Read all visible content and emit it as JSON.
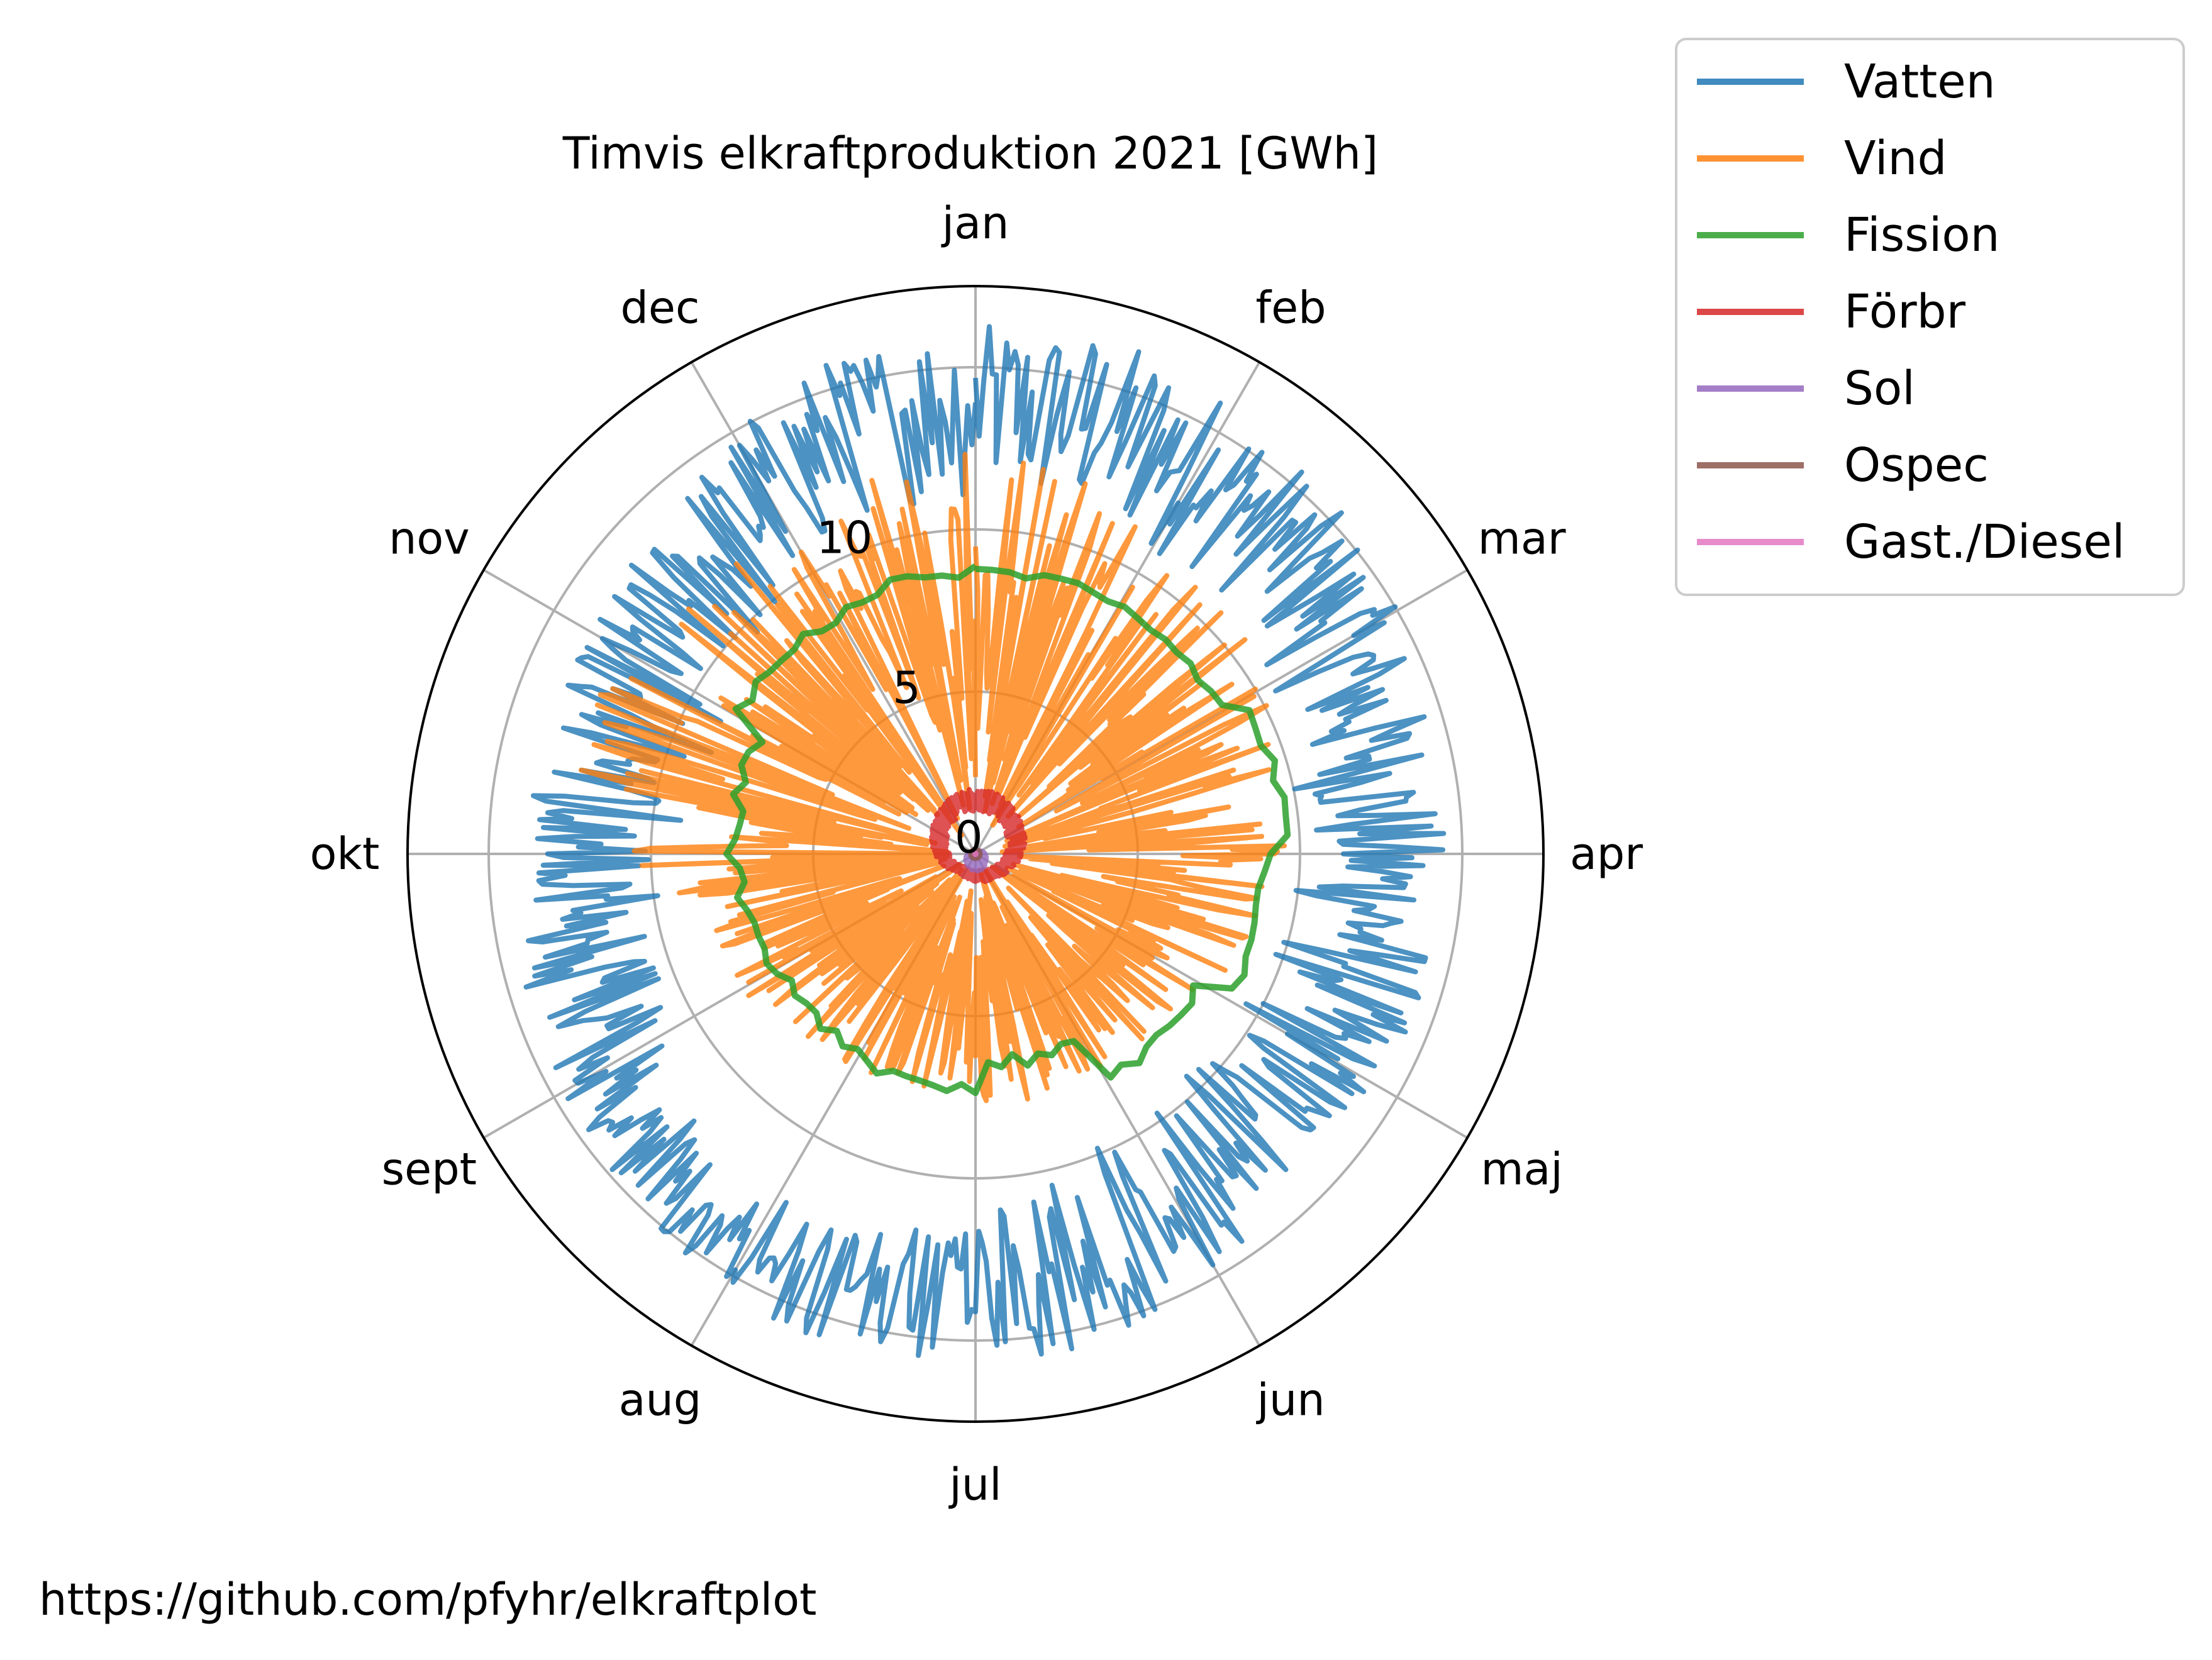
{
  "chart_data": {
    "type": "polar-line",
    "title": "Timvis elkraftproduktion 2021 [GWh]",
    "theta_labels": [
      "jan",
      "feb",
      "mar",
      "apr",
      "maj",
      "jun",
      "jul",
      "aug",
      "sept",
      "okt",
      "nov",
      "dec"
    ],
    "r_ticks": [
      0,
      5,
      10
    ],
    "r_range": [
      0,
      17.5
    ],
    "grid": true,
    "direction": "clockwise",
    "zero_location": "top",
    "legend_placement": "outside top-right",
    "series": [
      {
        "name": "Vatten",
        "color": "#1f77b4",
        "monthly_range": [
          [
            10.5,
            16.5
          ],
          [
            11,
            15.5
          ],
          [
            10,
            14.5
          ],
          [
            9.5,
            14.5
          ],
          [
            9,
            14
          ],
          [
            10,
            15.5
          ],
          [
            12,
            16
          ],
          [
            12,
            15
          ],
          [
            10,
            14.5
          ],
          [
            8.5,
            13.5
          ],
          [
            9,
            14
          ],
          [
            11,
            16
          ]
        ]
      },
      {
        "name": "Vind",
        "color": "#ff7f0e",
        "monthly_range": [
          [
            1,
            13
          ],
          [
            1,
            11
          ],
          [
            0.5,
            10
          ],
          [
            0.5,
            9
          ],
          [
            0.5,
            8
          ],
          [
            0.5,
            8
          ],
          [
            0.5,
            7.5
          ],
          [
            0.5,
            8
          ],
          [
            0.5,
            9
          ],
          [
            0.5,
            13
          ],
          [
            0.5,
            11.5
          ],
          [
            1,
            12
          ]
        ]
      },
      {
        "name": "Fission",
        "color": "#2ca02c",
        "monthly_values": [
          8.7,
          8.8,
          9.5,
          9.0,
          8.0,
          6.5,
          7.3,
          7.0,
          7.3,
          7.5,
          8.5,
          8.7
        ]
      },
      {
        "name": "Förbr",
        "color": "#d62728",
        "monthly_range": [
          [
            1.3,
            2
          ],
          [
            1.2,
            1.8
          ],
          [
            1,
            1.6
          ],
          [
            0.8,
            1.3
          ],
          [
            0.6,
            1
          ],
          [
            0.5,
            0.9
          ],
          [
            0.5,
            0.8
          ],
          [
            0.5,
            0.8
          ],
          [
            0.7,
            1.1
          ],
          [
            0.9,
            1.4
          ],
          [
            1.1,
            1.7
          ],
          [
            1.3,
            2
          ]
        ]
      },
      {
        "name": "Sol",
        "color": "#9467bd",
        "monthly_range": [
          [
            0,
            0.05
          ],
          [
            0,
            0.1
          ],
          [
            0,
            0.25
          ],
          [
            0,
            0.35
          ],
          [
            0,
            0.45
          ],
          [
            0,
            0.55
          ],
          [
            0,
            0.5
          ],
          [
            0,
            0.4
          ],
          [
            0,
            0.3
          ],
          [
            0,
            0.15
          ],
          [
            0,
            0.05
          ],
          [
            0,
            0.03
          ]
        ]
      },
      {
        "name": "Ospec",
        "color": "#8c564b",
        "monthly_range": [
          [
            0.05,
            0.15
          ],
          [
            0.05,
            0.15
          ],
          [
            0.05,
            0.15
          ],
          [
            0.05,
            0.15
          ],
          [
            0.05,
            0.15
          ],
          [
            0.05,
            0.15
          ],
          [
            0.05,
            0.15
          ],
          [
            0.05,
            0.15
          ],
          [
            0.05,
            0.15
          ],
          [
            0.05,
            0.15
          ],
          [
            0.05,
            0.15
          ],
          [
            0.05,
            0.15
          ]
        ]
      },
      {
        "name": "Gast./Diesel",
        "color": "#e377c2",
        "monthly_range": [
          [
            0,
            0.02
          ],
          [
            0,
            0.02
          ],
          [
            0,
            0.02
          ],
          [
            0,
            0.02
          ],
          [
            0,
            0.02
          ],
          [
            0,
            0.02
          ],
          [
            0,
            0.02
          ],
          [
            0,
            0.02
          ],
          [
            0,
            0.02
          ],
          [
            0,
            0.02
          ],
          [
            0,
            0.02
          ],
          [
            0,
            0.02
          ]
        ]
      }
    ]
  },
  "footer": {
    "source": "https://github.com/pfyhr/elkraftplot"
  }
}
